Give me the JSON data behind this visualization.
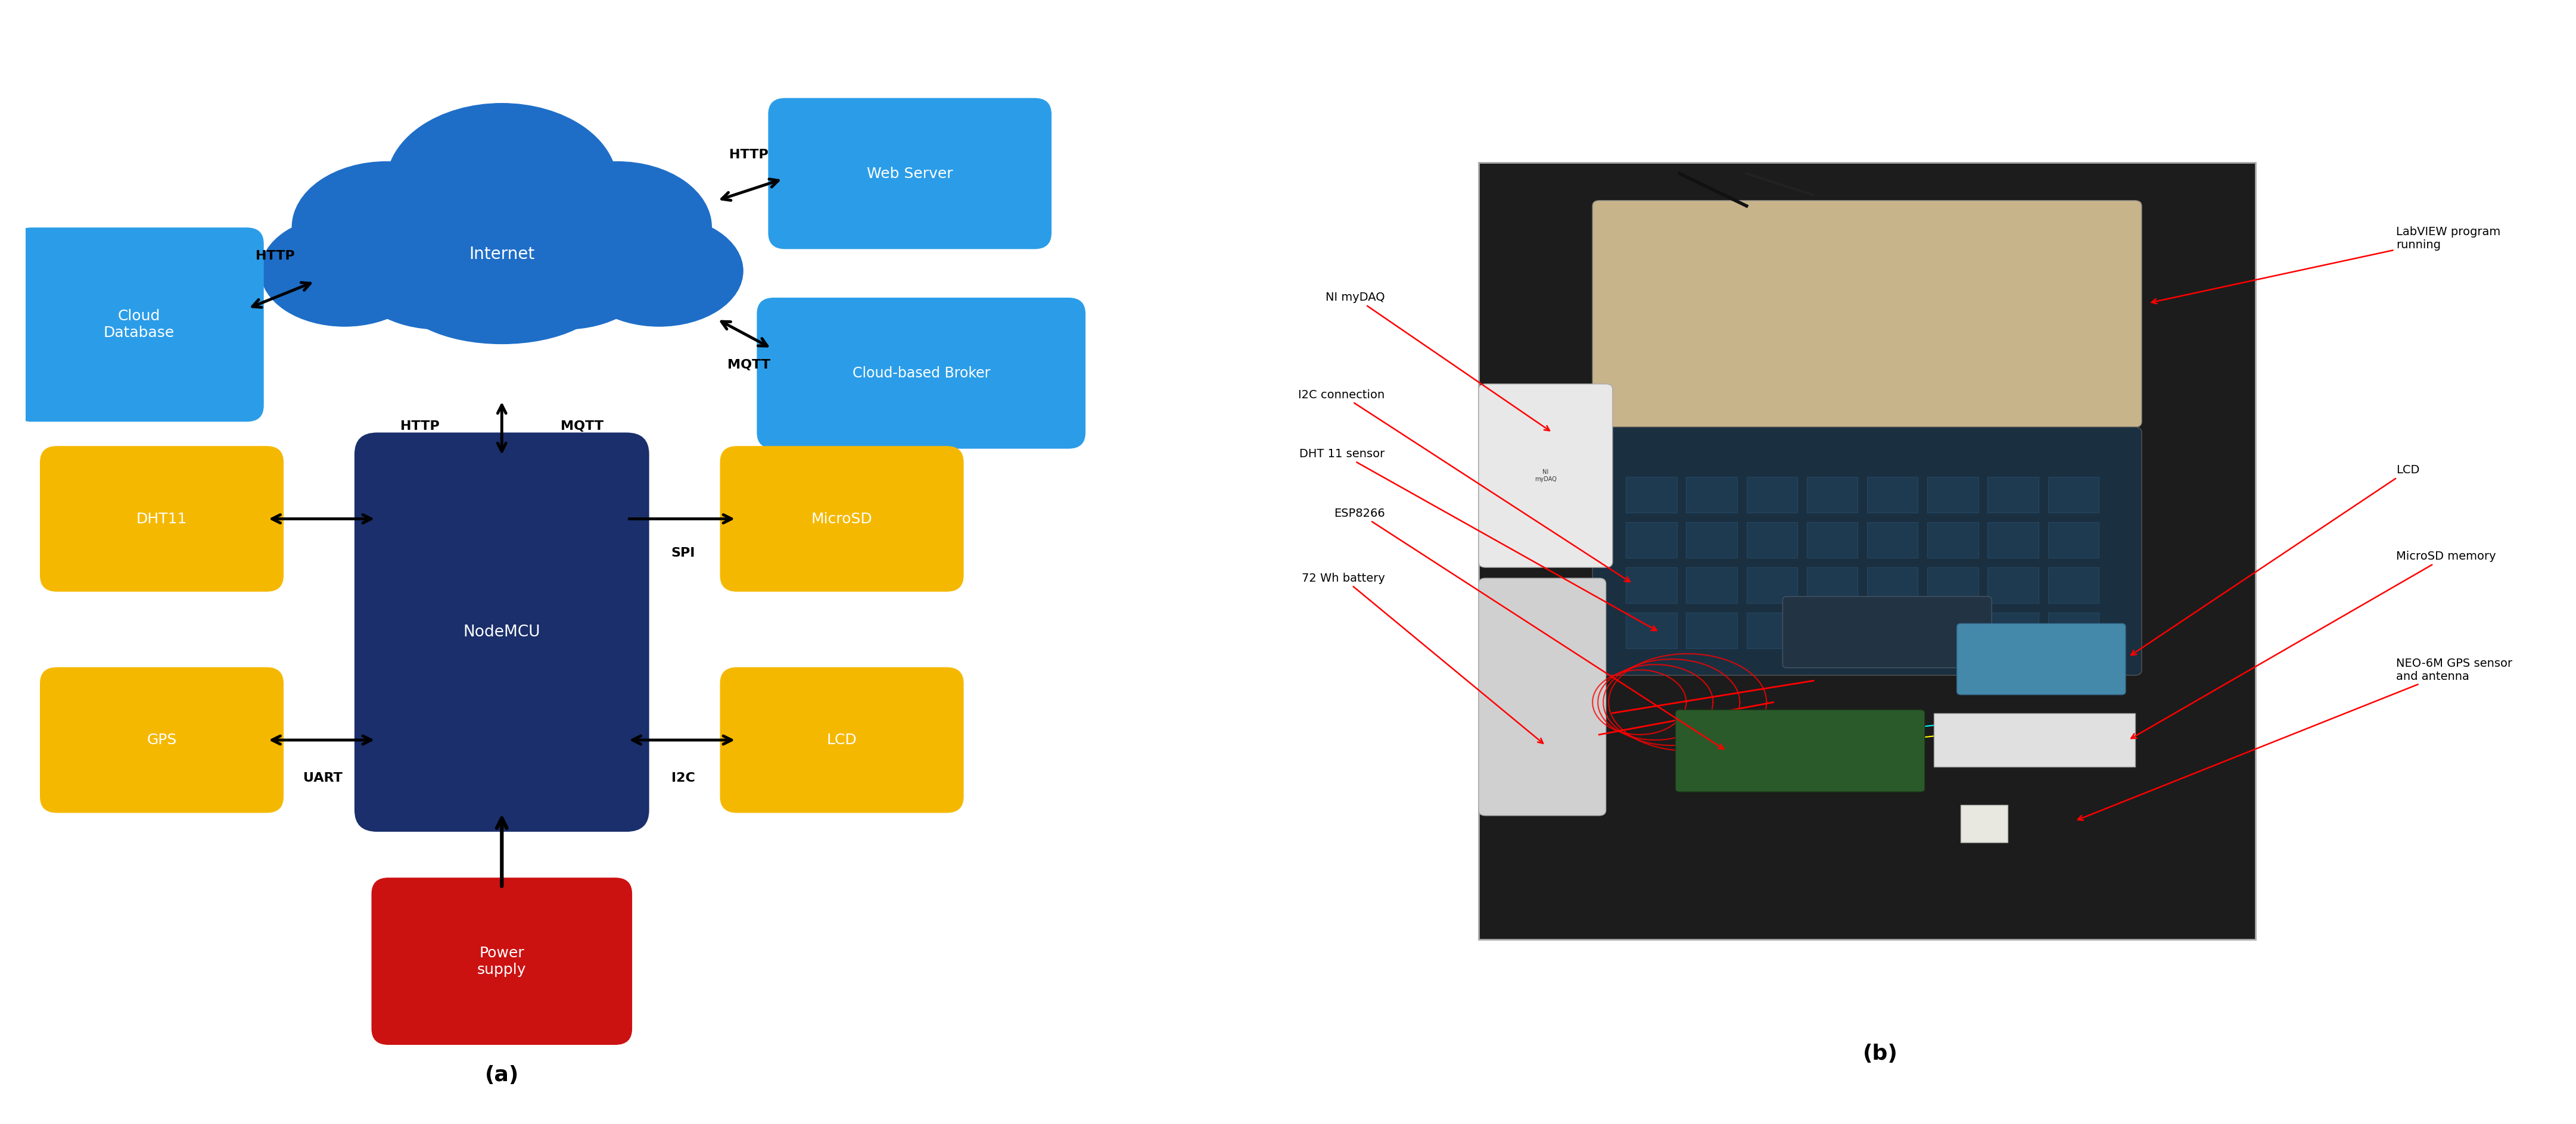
{
  "fig_width": 43.24,
  "fig_height": 18.88,
  "bg_color": "#ffffff",
  "cloud_color": "#1e6ec8",
  "box_blue_light": "#2b9de8",
  "box_dark_navy": "#1a2f6b",
  "box_yellow": "#f5b800",
  "box_red": "#cc1111",
  "label_fontsize": 22,
  "text_fontsize": 18,
  "arrow_fontsize": 16,
  "left_annotations": [
    {
      "label": "NI myDAQ",
      "ha": "right"
    },
    {
      "label": "I2C connection",
      "ha": "right"
    },
    {
      "label": "DHT 11 sensor",
      "ha": "right"
    },
    {
      "label": "ESP8266",
      "ha": "right"
    },
    {
      "label": "72 Wh battery",
      "ha": "right"
    }
  ],
  "right_annotations": [
    {
      "label": "LabVIEW program\nrunning",
      "ha": "left"
    },
    {
      "label": "LCD",
      "ha": "left"
    },
    {
      "label": "MicroSD memory",
      "ha": "left"
    },
    {
      "label": "NEO-6M GPS sensor\nand antenna",
      "ha": "left"
    }
  ]
}
